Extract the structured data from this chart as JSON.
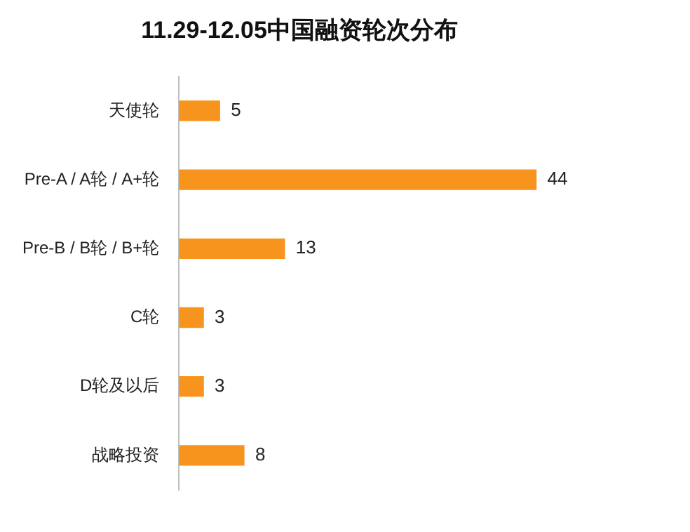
{
  "chart_data": {
    "type": "bar",
    "orientation": "horizontal",
    "title": "11.29-12.05中国融资轮次分布",
    "categories": [
      "天使轮",
      "Pre-A / A轮 / A+轮",
      "Pre-B / B轮 / B+轮",
      "C轮",
      "D轮及以后",
      "战略投资"
    ],
    "values": [
      5,
      44,
      13,
      3,
      3,
      8
    ],
    "color": "#f7941d",
    "data_labels": true,
    "grid": false,
    "legend": false
  }
}
